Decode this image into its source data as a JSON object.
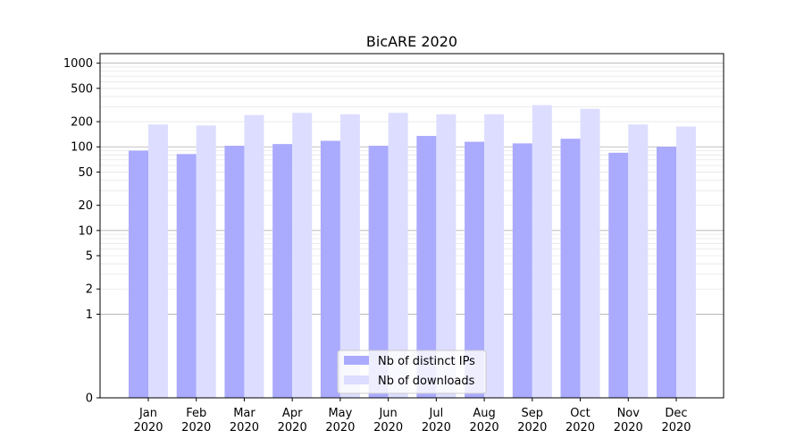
{
  "chart_data": {
    "type": "bar",
    "title": "BicARE 2020",
    "xlabel": "",
    "ylabel": "",
    "yscale": "symlog",
    "ylim": [
      0,
      1300
    ],
    "yticks": [
      0,
      1,
      2,
      5,
      10,
      20,
      50,
      100,
      200,
      500,
      1000
    ],
    "ytick_labels": [
      "0",
      "1",
      "2",
      "5",
      "10",
      "20",
      "50",
      "100",
      "200",
      "500",
      "1000"
    ],
    "categories": [
      "Jan\n2020",
      "Feb\n2020",
      "Mar\n2020",
      "Apr\n2020",
      "May\n2020",
      "Jun\n2020",
      "Jul\n2020",
      "Aug\n2020",
      "Sep\n2020",
      "Oct\n2020",
      "Nov\n2020",
      "Dec\n2020"
    ],
    "series": [
      {
        "name": "Nb of distinct IPs",
        "color": "#aaaaff",
        "values": [
          90,
          82,
          103,
          108,
          118,
          103,
          135,
          115,
          110,
          125,
          85,
          100
        ]
      },
      {
        "name": "Nb of downloads",
        "color": "#ddddff",
        "values": [
          185,
          180,
          240,
          255,
          245,
          255,
          245,
          245,
          315,
          285,
          185,
          175
        ]
      }
    ],
    "grid": true,
    "legend_position": "lower-center"
  }
}
